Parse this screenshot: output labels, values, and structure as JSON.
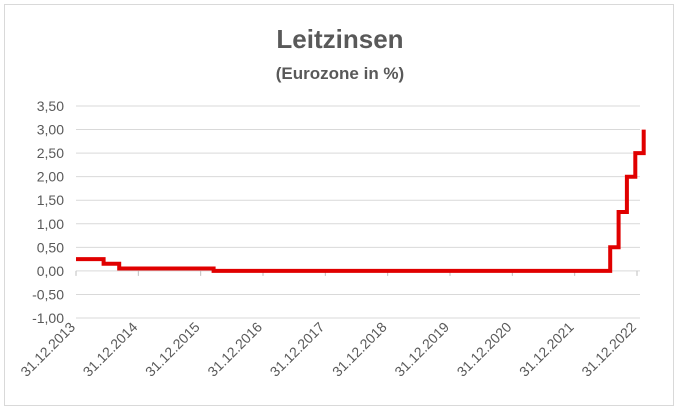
{
  "chart_data": {
    "type": "line",
    "title": "Leitzinsen",
    "subtitle": "(Eurozone in %)",
    "xlabel": "",
    "ylabel": "",
    "ylim": [
      -1.0,
      3.5
    ],
    "y_ticks": [
      "3,50",
      "3,00",
      "2,50",
      "2,00",
      "1,50",
      "1,00",
      "0,50",
      "0,00",
      "-0,50",
      "-1,00"
    ],
    "x_ticks": [
      "31.12.2013",
      "31.12.2014",
      "31.12.2015",
      "31.12.2016",
      "31.12.2017",
      "31.12.2018",
      "31.12.2019",
      "31.12.2020",
      "31.12.2021",
      "31.12.2022"
    ],
    "grid": true,
    "line_color": "#e00000",
    "series": [
      {
        "name": "",
        "points": [
          [
            "2013-12-31",
            0.25
          ],
          [
            "2014-06-11",
            0.25
          ],
          [
            "2014-06-11",
            0.15
          ],
          [
            "2014-09-10",
            0.15
          ],
          [
            "2014-09-10",
            0.05
          ],
          [
            "2016-03-16",
            0.05
          ],
          [
            "2016-03-16",
            0.0
          ],
          [
            "2022-07-27",
            0.0
          ],
          [
            "2022-07-27",
            0.5
          ],
          [
            "2022-09-14",
            0.5
          ],
          [
            "2022-09-14",
            1.25
          ],
          [
            "2022-11-02",
            1.25
          ],
          [
            "2022-11-02",
            2.0
          ],
          [
            "2022-12-21",
            2.0
          ],
          [
            "2022-12-21",
            2.5
          ],
          [
            "2023-02-08",
            2.5
          ],
          [
            "2023-02-08",
            3.0
          ]
        ]
      }
    ]
  }
}
